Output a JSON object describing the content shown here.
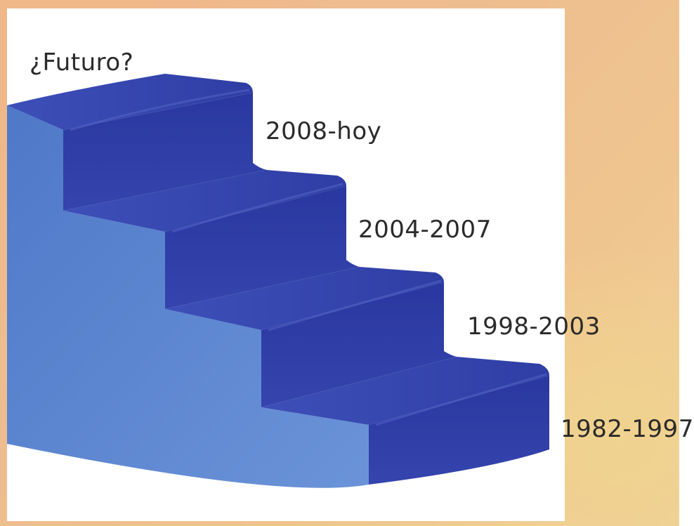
{
  "labels": {
    "top": "¿Futuro?",
    "step4": "2008-hoy",
    "step3": "2004-2007",
    "step2": "1998-2003",
    "step1": "1982-1997"
  },
  "colors": {
    "stair_front": "#5b86d2",
    "stair_riser": "#2e3fa6",
    "stair_tread": "#3949b3",
    "panel": "#ffffff",
    "background": "#efbd8f"
  }
}
